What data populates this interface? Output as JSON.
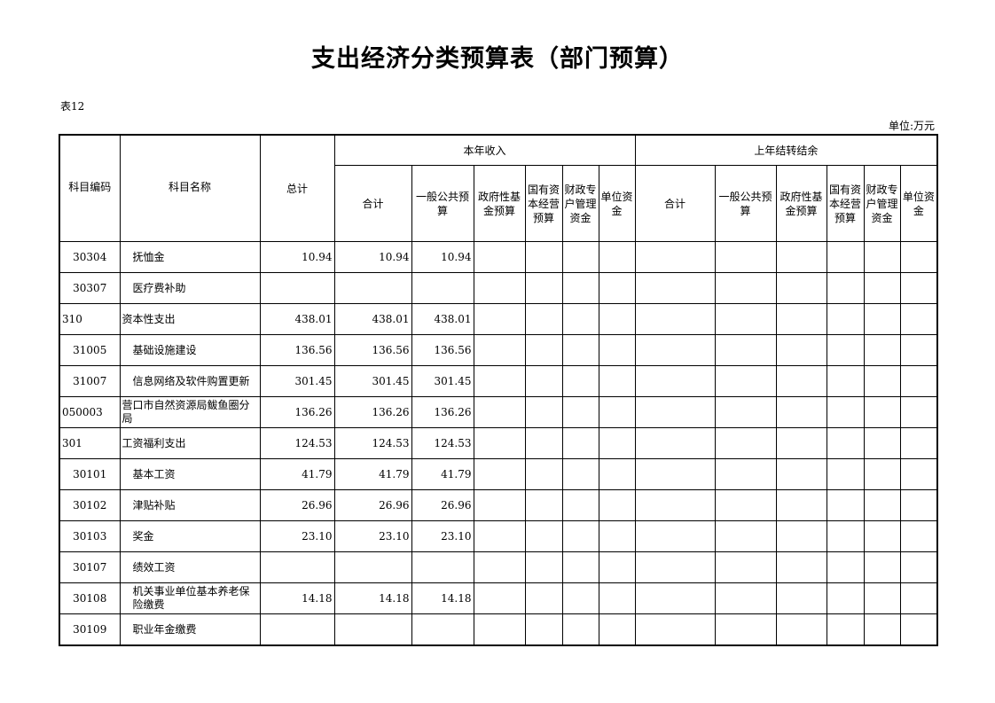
{
  "title": "支出经济分类预算表（部门预算）",
  "table_no": "表12",
  "unit": "单位:万元",
  "headers": {
    "code": "科目编码",
    "name": "科目名称",
    "total": "总计",
    "current_income": "本年收入",
    "carryover": "上年结转结余",
    "sub": [
      "合计",
      "一般公共预算",
      "政府性基金预算",
      "国有资本经营预算",
      "财政专户管理资金",
      "单位资金"
    ]
  },
  "rows": [
    {
      "code": "30304",
      "name": "抚恤金",
      "level": 2,
      "values": [
        "10.94",
        "10.94",
        "10.94"
      ]
    },
    {
      "code": "30307",
      "name": "医疗费补助",
      "level": 2,
      "values": [
        "",
        "",
        ""
      ]
    },
    {
      "code": "310",
      "name": "资本性支出",
      "level": 1,
      "values": [
        "438.01",
        "438.01",
        "438.01"
      ]
    },
    {
      "code": "31005",
      "name": "基础设施建设",
      "level": 2,
      "values": [
        "136.56",
        "136.56",
        "136.56"
      ]
    },
    {
      "code": "31007",
      "name": "信息网络及软件购置更新",
      "level": 2,
      "values": [
        "301.45",
        "301.45",
        "301.45"
      ]
    },
    {
      "code": "050003",
      "name": "营口市自然资源局鲅鱼圈分局",
      "level": 0,
      "values": [
        "136.26",
        "136.26",
        "136.26"
      ]
    },
    {
      "code": "301",
      "name": "工资福利支出",
      "level": 1,
      "values": [
        "124.53",
        "124.53",
        "124.53"
      ]
    },
    {
      "code": "30101",
      "name": "基本工资",
      "level": 2,
      "values": [
        "41.79",
        "41.79",
        "41.79"
      ]
    },
    {
      "code": "30102",
      "name": "津贴补贴",
      "level": 2,
      "values": [
        "26.96",
        "26.96",
        "26.96"
      ]
    },
    {
      "code": "30103",
      "name": "奖金",
      "level": 2,
      "values": [
        "23.10",
        "23.10",
        "23.10"
      ]
    },
    {
      "code": "30107",
      "name": "绩效工资",
      "level": 2,
      "values": [
        "",
        "",
        ""
      ]
    },
    {
      "code": "30108",
      "name": "机关事业单位基本养老保险缴费",
      "level": 2,
      "values": [
        "14.18",
        "14.18",
        "14.18"
      ]
    },
    {
      "code": "30109",
      "name": "职业年金缴费",
      "level": 2,
      "values": [
        "",
        "",
        ""
      ]
    }
  ]
}
